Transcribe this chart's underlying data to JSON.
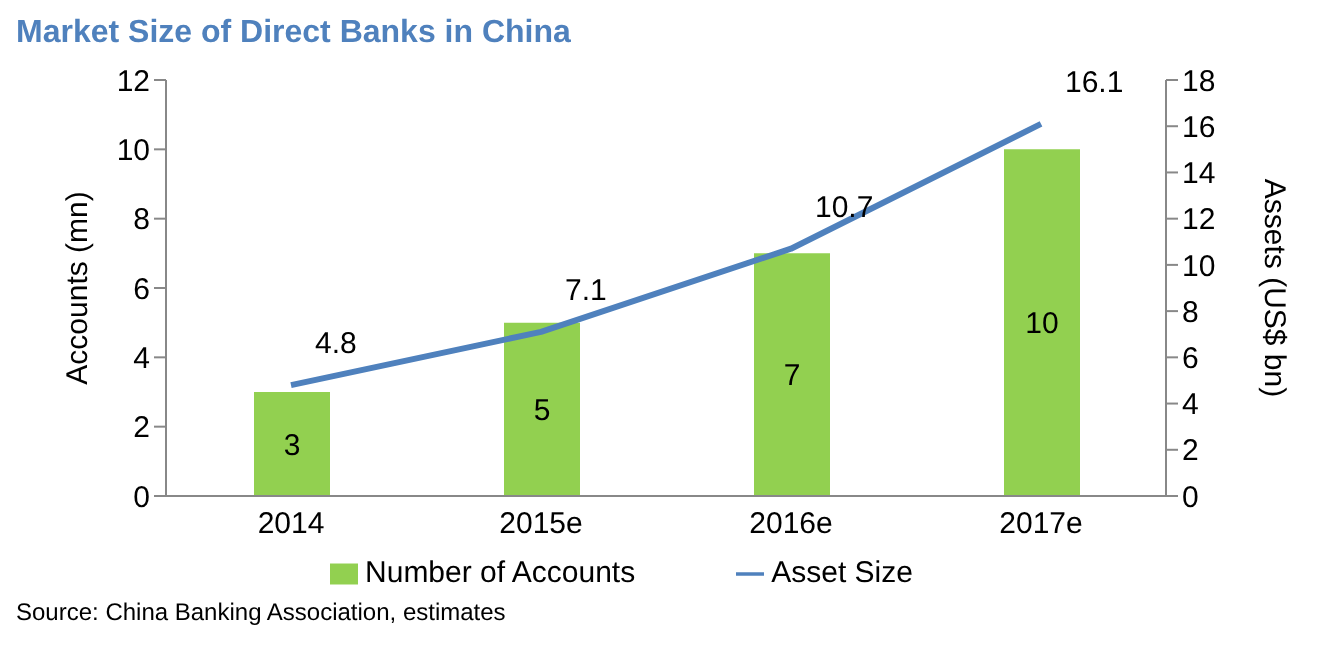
{
  "chart_data": {
    "type": "bar",
    "title": "Market Size of Direct Banks in China",
    "ylabel": "Accounts (mn)",
    "y2label": "Assets (US$ bn)",
    "categories": [
      "2014",
      "2015e",
      "2016e",
      "2017e"
    ],
    "series": [
      {
        "name": "Number of Accounts",
        "color": "#92d050",
        "values": [
          3,
          5,
          7,
          10
        ]
      },
      {
        "name": "Asset Size",
        "type": "line",
        "axis": "y2",
        "color": "#4f81bd",
        "values": [
          4.8,
          7.1,
          10.7,
          16.1
        ]
      }
    ],
    "ylim": [
      0,
      12
    ],
    "yticks": [
      0,
      2,
      4,
      6,
      8,
      10,
      12
    ],
    "y2lim": [
      0,
      18
    ],
    "y2ticks": [
      0,
      2,
      4,
      6,
      8,
      10,
      12,
      14,
      16,
      18
    ],
    "data_labels": true,
    "legend": "bottom",
    "grid": false,
    "marker": "none",
    "annotations": [
      "Source: China Banking Association, estimates"
    ]
  }
}
